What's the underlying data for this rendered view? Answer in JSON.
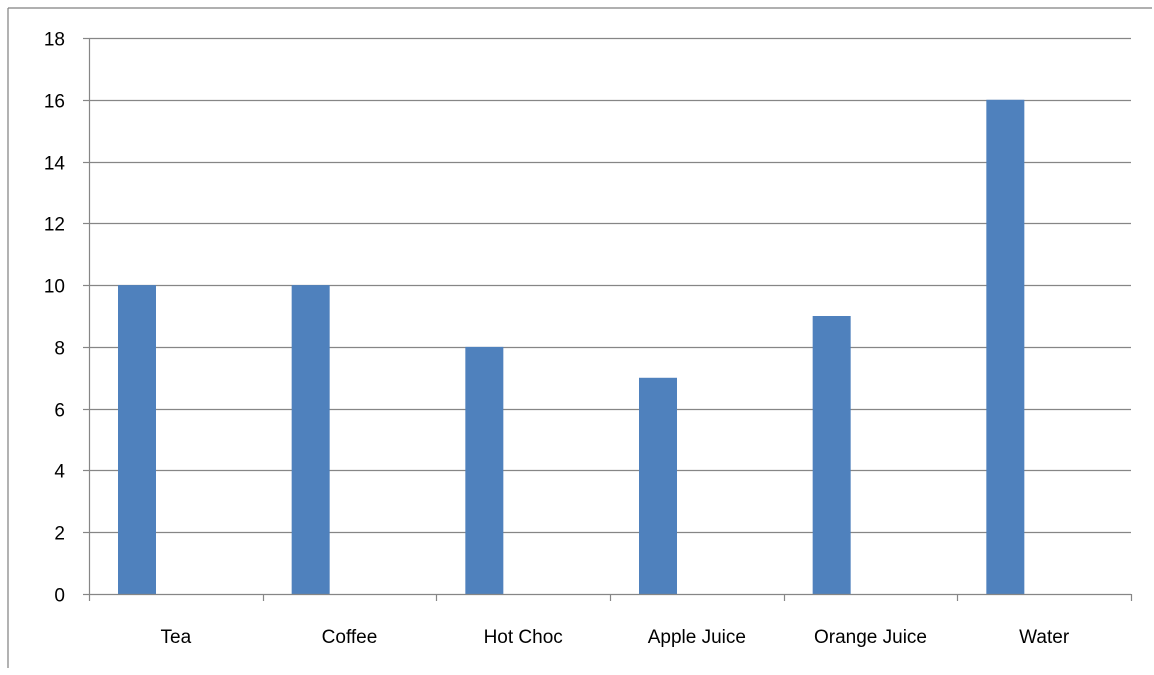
{
  "chart_data": {
    "type": "bar",
    "categories": [
      "Tea",
      "Coffee",
      "Hot Choc",
      "Apple Juice",
      "Orange Juice",
      "Water"
    ],
    "values": [
      10,
      10,
      8,
      7,
      9,
      16
    ],
    "ylim": [
      0,
      18
    ],
    "yticks": [
      "0",
      "2",
      "4",
      "6",
      "8",
      "10",
      "12",
      "14",
      "16",
      "18"
    ],
    "grid": true,
    "legend": "none",
    "colors": {
      "bar": "#4F81BD",
      "grid": "#868686",
      "axis": "#868686",
      "border": "#808080"
    }
  }
}
